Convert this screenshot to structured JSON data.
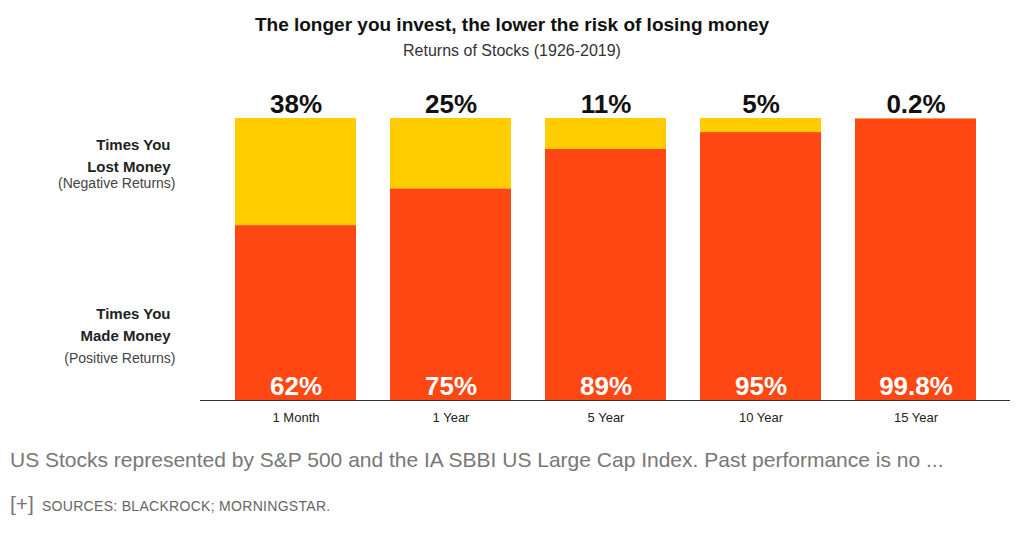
{
  "chart_data": {
    "type": "bar",
    "title": "The longer you invest, the lower the risk of losing money",
    "subtitle": "Returns of Stocks (1926-2019)",
    "caption": "US Stocks represented by S&P 500 and the IA SBBI US Large Cap Index. Past performance is no ... [+]",
    "source": "SOURCES: BLACKROCK; MORNINGSTAR.",
    "categories": [
      "1 Month",
      "1 Year",
      "5 Year",
      "10 Year",
      "15 Year"
    ],
    "series": [
      {
        "name": "Times You Lost Money (Negative Returns)",
        "color": "#ffcc00",
        "values": [
          38,
          25,
          11,
          5,
          0.2
        ],
        "value_labels": [
          "38%",
          "25%",
          "11%",
          "5%",
          "0.2%"
        ]
      },
      {
        "name": "Times You Made Money (Positive Returns)",
        "color": "#ff4713",
        "values": [
          62,
          75,
          89,
          95,
          99.8
        ],
        "value_labels": [
          "62%",
          "75%",
          "89%",
          "95%",
          "99.8%"
        ]
      }
    ],
    "stacked": true,
    "data_labels": true,
    "ylim": [
      0,
      100
    ],
    "tick_labels": "x"
  }
}
